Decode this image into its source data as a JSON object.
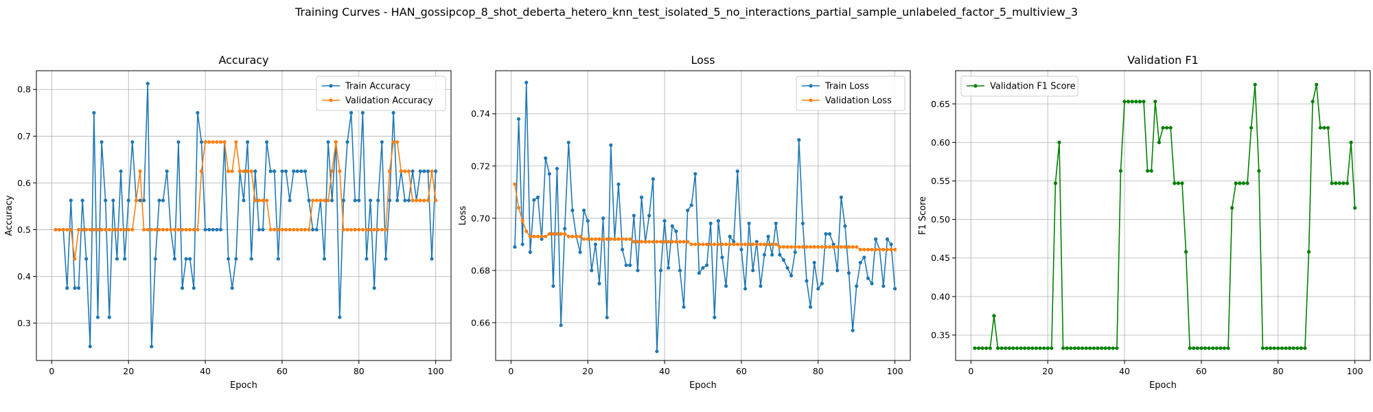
{
  "figure": {
    "title": "Training Curves - HAN_gossipcop_8_shot_deberta_hetero_knn_test_isolated_5_no_interactions_partial_sample_unlabeled_factor_5_multiview_3"
  },
  "colors": {
    "blue": "#1f77b4",
    "orange": "#ff7f0e",
    "green": "#008000",
    "grid": "#b0b0b0"
  },
  "chart_data": [
    {
      "type": "line",
      "title": "Accuracy",
      "xlabel": "Epoch",
      "ylabel": "Accuracy",
      "xlim": [
        -4,
        104
      ],
      "ylim": [
        0.22,
        0.84
      ],
      "xticks": [
        0,
        20,
        40,
        60,
        80,
        100
      ],
      "yticks": [
        0.3,
        0.4,
        0.5,
        0.6,
        0.7,
        0.8
      ],
      "grid": true,
      "legend": "top-right",
      "x_start": 1,
      "series": [
        {
          "name": "Train Accuracy",
          "color": "#1f77b4",
          "values": [
            0.5,
            0.5,
            0.5,
            0.375,
            0.5625,
            0.375,
            0.375,
            0.5625,
            0.4375,
            0.25,
            0.75,
            0.3125,
            0.6875,
            0.5625,
            0.3125,
            0.5625,
            0.4375,
            0.625,
            0.4375,
            0.5625,
            0.6875,
            0.5625,
            0.5625,
            0.5625,
            0.8125,
            0.25,
            0.4375,
            0.5625,
            0.5625,
            0.625,
            0.5,
            0.4375,
            0.6875,
            0.375,
            0.4375,
            0.4375,
            0.375,
            0.75,
            0.6875,
            0.5,
            0.5,
            0.5,
            0.5,
            0.5,
            0.6875,
            0.4375,
            0.375,
            0.4375,
            0.625,
            0.5625,
            0.6875,
            0.4375,
            0.625,
            0.5,
            0.5,
            0.6875,
            0.625,
            0.625,
            0.4375,
            0.625,
            0.625,
            0.5625,
            0.625,
            0.625,
            0.625,
            0.625,
            0.5625,
            0.5,
            0.5,
            0.5625,
            0.4375,
            0.6875,
            0.5625,
            0.6875,
            0.3125,
            0.5625,
            0.6875,
            0.75,
            0.5625,
            0.5625,
            0.75,
            0.4375,
            0.5625,
            0.375,
            0.5625,
            0.6875,
            0.4375,
            0.5625,
            0.75,
            0.5625,
            0.625,
            0.5625,
            0.5625,
            0.625,
            0.5625,
            0.625,
            0.625,
            0.625,
            0.4375,
            0.625
          ]
        },
        {
          "name": "Validation Accuracy",
          "color": "#ff7f0e",
          "values": [
            0.5,
            0.5,
            0.5,
            0.5,
            0.5,
            0.4375,
            0.5,
            0.5,
            0.5,
            0.5,
            0.5,
            0.5,
            0.5,
            0.5,
            0.5,
            0.5,
            0.5,
            0.5,
            0.5,
            0.5,
            0.5,
            0.5625,
            0.625,
            0.5,
            0.5,
            0.5,
            0.5,
            0.5,
            0.5,
            0.5,
            0.5,
            0.5,
            0.5,
            0.5,
            0.5,
            0.5,
            0.5,
            0.5,
            0.625,
            0.6875,
            0.6875,
            0.6875,
            0.6875,
            0.6875,
            0.6875,
            0.625,
            0.625,
            0.6875,
            0.625,
            0.625,
            0.625,
            0.625,
            0.5625,
            0.5625,
            0.5625,
            0.5625,
            0.5,
            0.5,
            0.5,
            0.5,
            0.5,
            0.5,
            0.5,
            0.5,
            0.5,
            0.5,
            0.5,
            0.5625,
            0.5625,
            0.5625,
            0.5625,
            0.5625,
            0.625,
            0.6875,
            0.625,
            0.5,
            0.5,
            0.5,
            0.5,
            0.5,
            0.5,
            0.5,
            0.5,
            0.5,
            0.5,
            0.5,
            0.5,
            0.625,
            0.6875,
            0.6875,
            0.625,
            0.625,
            0.625,
            0.5625,
            0.5625,
            0.5625,
            0.5625,
            0.5625,
            0.625,
            0.5625
          ]
        }
      ]
    },
    {
      "type": "line",
      "title": "Loss",
      "xlabel": "Epoch",
      "ylabel": "Loss",
      "xlim": [
        -4,
        104
      ],
      "ylim": [
        0.6455,
        0.7565
      ],
      "xticks": [
        0,
        20,
        40,
        60,
        80,
        100
      ],
      "yticks": [
        0.66,
        0.68,
        0.7,
        0.72,
        0.74
      ],
      "grid": true,
      "legend": "top-right",
      "x_start": 1,
      "series": [
        {
          "name": "Train Loss",
          "color": "#1f77b4",
          "values": [
            0.689,
            0.738,
            0.69,
            0.752,
            0.687,
            0.707,
            0.708,
            0.692,
            0.723,
            0.717,
            0.674,
            0.719,
            0.659,
            0.696,
            0.729,
            0.703,
            0.693,
            0.687,
            0.703,
            0.699,
            0.68,
            0.69,
            0.675,
            0.7,
            0.662,
            0.728,
            0.692,
            0.713,
            0.688,
            0.682,
            0.682,
            0.701,
            0.68,
            0.708,
            0.691,
            0.701,
            0.715,
            0.649,
            0.68,
            0.699,
            0.681,
            0.697,
            0.695,
            0.68,
            0.666,
            0.703,
            0.705,
            0.717,
            0.679,
            0.681,
            0.682,
            0.698,
            0.662,
            0.699,
            0.685,
            0.674,
            0.693,
            0.691,
            0.718,
            0.688,
            0.673,
            0.698,
            0.68,
            0.691,
            0.674,
            0.686,
            0.693,
            0.686,
            0.698,
            0.686,
            0.684,
            0.681,
            0.678,
            0.687,
            0.73,
            0.698,
            0.676,
            0.666,
            0.683,
            0.673,
            0.675,
            0.694,
            0.694,
            0.69,
            0.68,
            0.708,
            0.697,
            0.679,
            0.657,
            0.674,
            0.683,
            0.685,
            0.677,
            0.675,
            0.692,
            0.688,
            0.674,
            0.692,
            0.69,
            0.673
          ]
        },
        {
          "name": "Validation Loss",
          "color": "#ff7f0e",
          "values": [
            0.713,
            0.704,
            0.699,
            0.695,
            0.693,
            0.693,
            0.693,
            0.693,
            0.693,
            0.694,
            0.694,
            0.694,
            0.694,
            0.694,
            0.693,
            0.693,
            0.693,
            0.693,
            0.692,
            0.692,
            0.692,
            0.692,
            0.692,
            0.692,
            0.692,
            0.692,
            0.692,
            0.692,
            0.692,
            0.692,
            0.692,
            0.691,
            0.691,
            0.691,
            0.691,
            0.691,
            0.691,
            0.691,
            0.691,
            0.691,
            0.691,
            0.691,
            0.691,
            0.691,
            0.691,
            0.691,
            0.69,
            0.69,
            0.69,
            0.69,
            0.69,
            0.69,
            0.69,
            0.69,
            0.69,
            0.69,
            0.69,
            0.69,
            0.69,
            0.69,
            0.69,
            0.69,
            0.69,
            0.69,
            0.69,
            0.69,
            0.69,
            0.69,
            0.69,
            0.689,
            0.689,
            0.689,
            0.689,
            0.689,
            0.689,
            0.689,
            0.689,
            0.689,
            0.689,
            0.689,
            0.689,
            0.689,
            0.689,
            0.689,
            0.689,
            0.689,
            0.689,
            0.689,
            0.689,
            0.689,
            0.688,
            0.688,
            0.688,
            0.688,
            0.688,
            0.688,
            0.688,
            0.688,
            0.688,
            0.688
          ]
        }
      ]
    },
    {
      "type": "line",
      "title": "Validation F1",
      "xlabel": "Epoch",
      "ylabel": "F1 Score",
      "xlim": [
        -4,
        104
      ],
      "ylim": [
        0.317,
        0.693
      ],
      "xticks": [
        0,
        20,
        40,
        60,
        80,
        100
      ],
      "yticks": [
        0.35,
        0.4,
        0.45,
        0.5,
        0.55,
        0.6,
        0.65
      ],
      "grid": true,
      "legend": "top-left",
      "x_start": 1,
      "series": [
        {
          "name": "Validation F1 Score",
          "color": "#008000",
          "values": [
            0.333,
            0.333,
            0.333,
            0.333,
            0.333,
            0.375,
            0.333,
            0.333,
            0.333,
            0.333,
            0.333,
            0.333,
            0.333,
            0.333,
            0.333,
            0.333,
            0.333,
            0.333,
            0.333,
            0.333,
            0.333,
            0.547,
            0.6,
            0.333,
            0.333,
            0.333,
            0.333,
            0.333,
            0.333,
            0.333,
            0.333,
            0.333,
            0.333,
            0.333,
            0.333,
            0.333,
            0.333,
            0.333,
            0.563,
            0.653,
            0.653,
            0.653,
            0.653,
            0.653,
            0.653,
            0.563,
            0.563,
            0.653,
            0.6,
            0.619,
            0.619,
            0.619,
            0.547,
            0.547,
            0.547,
            0.458,
            0.333,
            0.333,
            0.333,
            0.333,
            0.333,
            0.333,
            0.333,
            0.333,
            0.333,
            0.333,
            0.333,
            0.515,
            0.547,
            0.547,
            0.547,
            0.547,
            0.619,
            0.675,
            0.563,
            0.333,
            0.333,
            0.333,
            0.333,
            0.333,
            0.333,
            0.333,
            0.333,
            0.333,
            0.333,
            0.333,
            0.333,
            0.458,
            0.653,
            0.675,
            0.619,
            0.619,
            0.619,
            0.547,
            0.547,
            0.547,
            0.547,
            0.547,
            0.6,
            0.515
          ]
        }
      ]
    }
  ]
}
